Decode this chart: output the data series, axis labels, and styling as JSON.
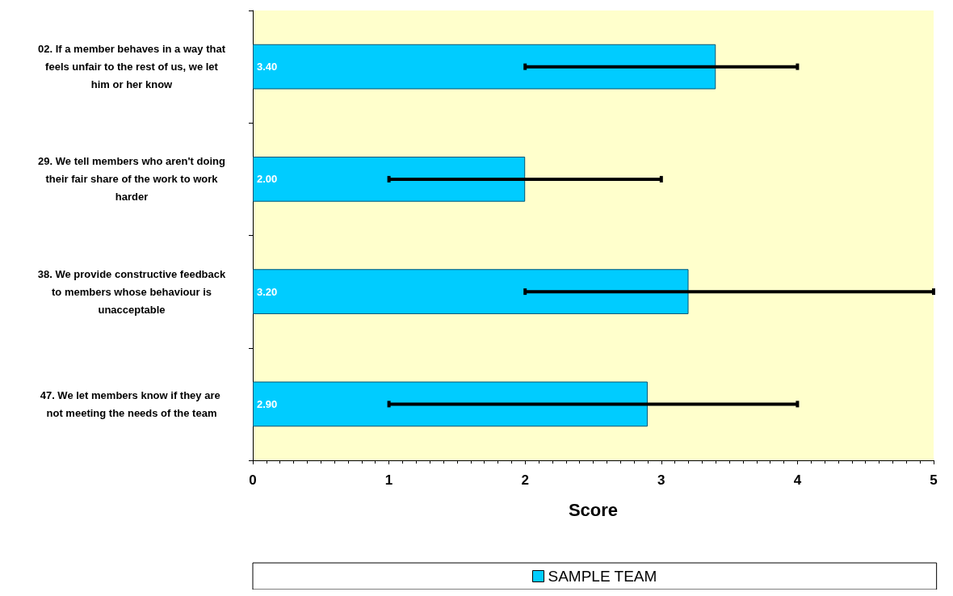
{
  "chart_data": {
    "type": "bar",
    "orientation": "horizontal",
    "xlabel": "Score",
    "categories": [
      "02. If a member behaves in a way that feels unfair to the rest of us, we let him or her know",
      "29. We tell members who aren't doing their fair share of the work to work harder",
      "38. We provide constructive feedback to members whose behaviour is unacceptable",
      "47. We let members know if they are not meeting the needs of the team"
    ],
    "series": [
      {
        "name": "SAMPLE TEAM",
        "color": "#00ccff",
        "values": [
          3.4,
          2.0,
          3.2,
          2.9
        ],
        "value_labels": [
          "3.40",
          "2.00",
          "3.20",
          "2.90"
        ],
        "errors": [
          [
            2,
            4
          ],
          [
            1,
            3
          ],
          [
            2,
            5
          ],
          [
            1,
            4
          ]
        ]
      }
    ],
    "xlim": [
      0,
      5
    ],
    "xticks": [
      0,
      1,
      2,
      3,
      4,
      5
    ],
    "grid": false,
    "legend": "bottom"
  }
}
